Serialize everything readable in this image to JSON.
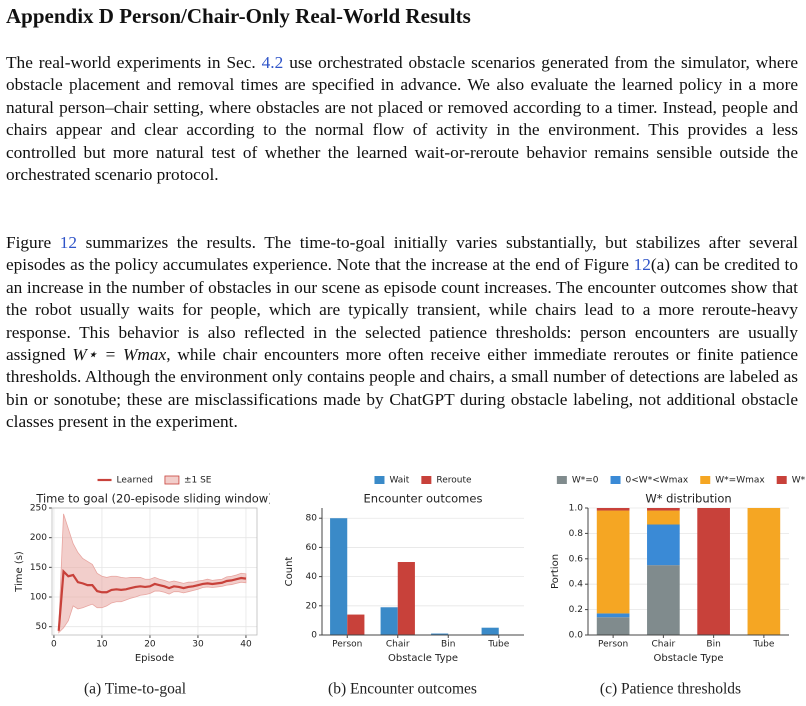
{
  "header": {
    "title": "Appendix D    Person/Chair-Only Real-World Results"
  },
  "paragraphs": [
    [
      {
        "text": "The real-world experiments in Sec. "
      },
      {
        "text": "4.2",
        "ref": true
      },
      {
        "text": " use orchestrated obstacle scenarios generated from the simulator, where obstacle placement and removal times are specified in advance. We also evaluate the learned policy in a more natural person–chair setting, where obstacles are not placed or removed according to a timer. Instead, people and chairs appear and clear according to the normal flow of activity in the environment. This provides a less controlled but more natural test of whether the learned wait-or-reroute behavior remains sensible outside the orchestrated scenario protocol."
      }
    ],
    [
      {
        "text": "Figure "
      },
      {
        "text": "12",
        "ref": true
      },
      {
        "text": " summarizes the results. The time-to-goal initially varies substantially, but stabilizes after several episodes as the policy accumulates experience. Note that the increase at the end of Figure "
      },
      {
        "text": "12",
        "ref": true
      },
      {
        "text": "(a) can be credited to an increase in the number of obstacles in our scene as episode count increases. The encounter outcomes show that the robot usually waits for people, which are typically transient, while chairs lead to a more reroute-heavy response. This behavior is also reflected in the selected patience thresholds: person encounters are usually assigned "
      },
      {
        "text": "W⋆ = Wmax",
        "math": true
      },
      {
        "text": ", while chair encounters more often receive either immediate reroutes or finite patience thresholds. Although the environment only contains people and chairs, a small number of detections are labeled as bin or sonotube; these are misclassifications made by ChatGPT during obstacle labeling, not additional obstacle classes present in the experiment."
      }
    ]
  ],
  "chart_data": [
    {
      "type": "line",
      "title": "Time to goal (20-episode sliding window)",
      "caption": "(a) Time-to-goal",
      "xlabel": "Episode",
      "ylabel": "Time (s)",
      "x": [
        1,
        2,
        3,
        4,
        5,
        6,
        7,
        8,
        9,
        10,
        11,
        12,
        13,
        14,
        15,
        16,
        17,
        18,
        19,
        20,
        21,
        22,
        23,
        24,
        25,
        26,
        27,
        28,
        29,
        30,
        31,
        32,
        33,
        34,
        35,
        36,
        37,
        38,
        39,
        40
      ],
      "series": [
        {
          "name": "Learned",
          "color": "#c8413a",
          "values": [
            43,
            143,
            135,
            137,
            125,
            123,
            120,
            120,
            110,
            108,
            108,
            112,
            113,
            112,
            113,
            115,
            117,
            118,
            117,
            118,
            122,
            120,
            118,
            115,
            118,
            117,
            115,
            117,
            118,
            120,
            122,
            123,
            122,
            123,
            124,
            127,
            128,
            130,
            132,
            131
          ]
        }
      ],
      "band": {
        "name": "±1 SE",
        "color": "#e8a5a0",
        "upper": [
          48,
          240,
          215,
          190,
          175,
          165,
          160,
          155,
          140,
          135,
          133,
          135,
          135,
          133,
          132,
          133,
          133,
          133,
          130,
          130,
          133,
          130,
          128,
          125,
          127,
          125,
          123,
          125,
          125,
          127,
          128,
          130,
          128,
          129,
          130,
          134,
          135,
          137,
          140,
          139
        ],
        "lower": [
          40,
          48,
          60,
          85,
          80,
          82,
          85,
          88,
          82,
          82,
          85,
          90,
          92,
          92,
          95,
          98,
          100,
          103,
          104,
          106,
          110,
          110,
          108,
          105,
          109,
          109,
          107,
          109,
          111,
          113,
          116,
          117,
          116,
          117,
          118,
          120,
          121,
          123,
          125,
          124
        ]
      },
      "xlim": [
        -0.4,
        42.3
      ],
      "xticks": [
        0,
        10,
        20,
        30,
        40
      ],
      "ylim": [
        36,
        250
      ],
      "yticks": [
        50,
        100,
        150,
        200,
        250
      ],
      "grid": true
    },
    {
      "type": "bar",
      "title": "Encounter outcomes",
      "caption": "(b) Encounter outcomes",
      "xlabel": "Obstacle Type",
      "ylabel": "Count",
      "categories": [
        "Person",
        "Chair",
        "Bin",
        "Tube"
      ],
      "series": [
        {
          "name": "Wait",
          "color": "#3a8ac8",
          "values": [
            80,
            19,
            1,
            5
          ]
        },
        {
          "name": "Reroute",
          "color": "#c8413a",
          "values": [
            14,
            50,
            0,
            0
          ]
        }
      ],
      "ylim": [
        0,
        87
      ],
      "yticks": [
        0,
        20,
        40,
        60,
        80
      ],
      "grid": true,
      "stacked": false
    },
    {
      "type": "bar",
      "title": "W* distribution",
      "caption": "(c) Patience thresholds",
      "xlabel": "Obstacle Type",
      "ylabel": "Portion",
      "categories": [
        "Person",
        "Chair",
        "Bin",
        "Tube"
      ],
      "series": [
        {
          "name": "W*=0",
          "color": "#808b8d",
          "values": [
            0.14,
            0.55,
            0,
            0
          ]
        },
        {
          "name": "0<W*<Wmax",
          "color": "#3a8ad6",
          "values": [
            0.03,
            0.32,
            0,
            0
          ]
        },
        {
          "name": "W*=Wmax",
          "color": "#f5a623",
          "values": [
            0.81,
            0.11,
            0,
            1
          ]
        },
        {
          "name": "W*=∞",
          "color": "#c8413a",
          "values": [
            0.02,
            0.02,
            1,
            0
          ]
        }
      ],
      "ylim": [
        0,
        1
      ],
      "yticks": [
        {
          "value": 0,
          "label": "0.0"
        },
        0.2,
        0.4,
        0.6,
        0.8,
        {
          "value": 1,
          "label": "1.0"
        }
      ],
      "grid": true,
      "stacked": true
    }
  ]
}
